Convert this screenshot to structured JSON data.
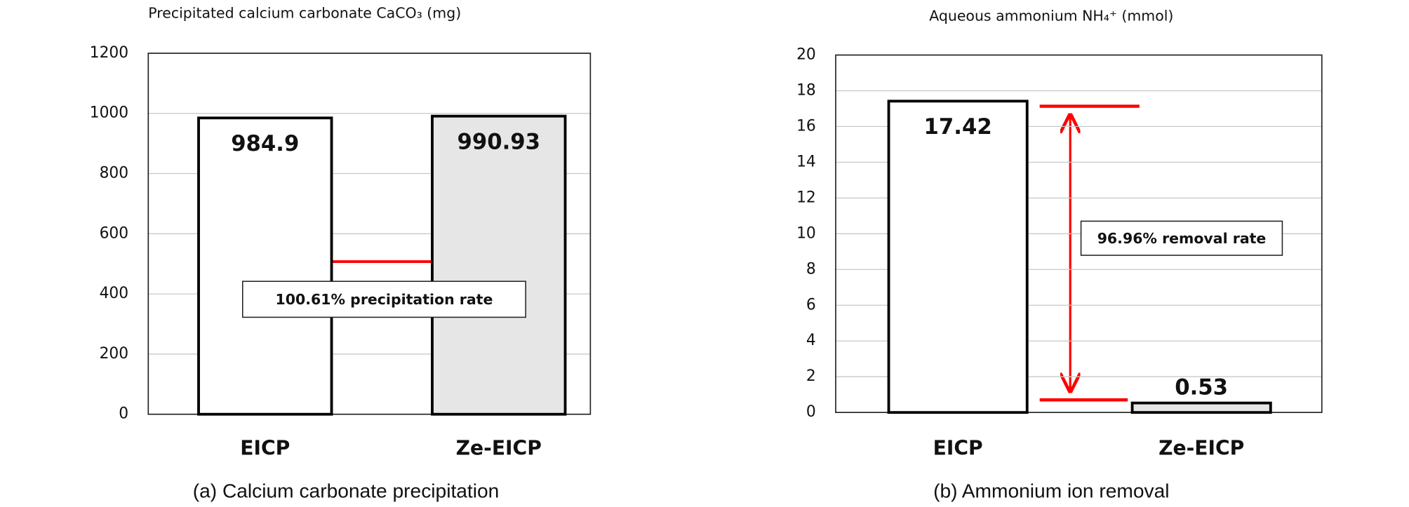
{
  "chart_data": [
    {
      "type": "bar",
      "title": "Precipitated calcium carbonate CaCO₃ (mg)",
      "caption": "(a) Calcium carbonate precipitation",
      "annotation": "100.61% precipitation rate",
      "categories": [
        "EICP",
        "Ze-EICP"
      ],
      "values": [
        984.9,
        990.93
      ],
      "colors": [
        "#ffffff",
        "#e6e6e6"
      ],
      "ylim": [
        0,
        1200
      ],
      "yticks": [
        0,
        200,
        400,
        600,
        800,
        1000,
        1200
      ],
      "grid": true
    },
    {
      "type": "bar",
      "title": "Aqueous ammonium NH₄⁺ (mmol)",
      "caption": "(b) Ammonium ion removal",
      "annotation": "96.96% removal rate",
      "categories": [
        "EICP",
        "Ze-EICP"
      ],
      "values": [
        17.42,
        0.53
      ],
      "colors": [
        "#ffffff",
        "#e6e6e6"
      ],
      "ylim": [
        0,
        20
      ],
      "yticks": [
        0,
        2,
        4,
        6,
        8,
        10,
        12,
        14,
        16,
        18,
        20
      ],
      "grid": true
    }
  ]
}
